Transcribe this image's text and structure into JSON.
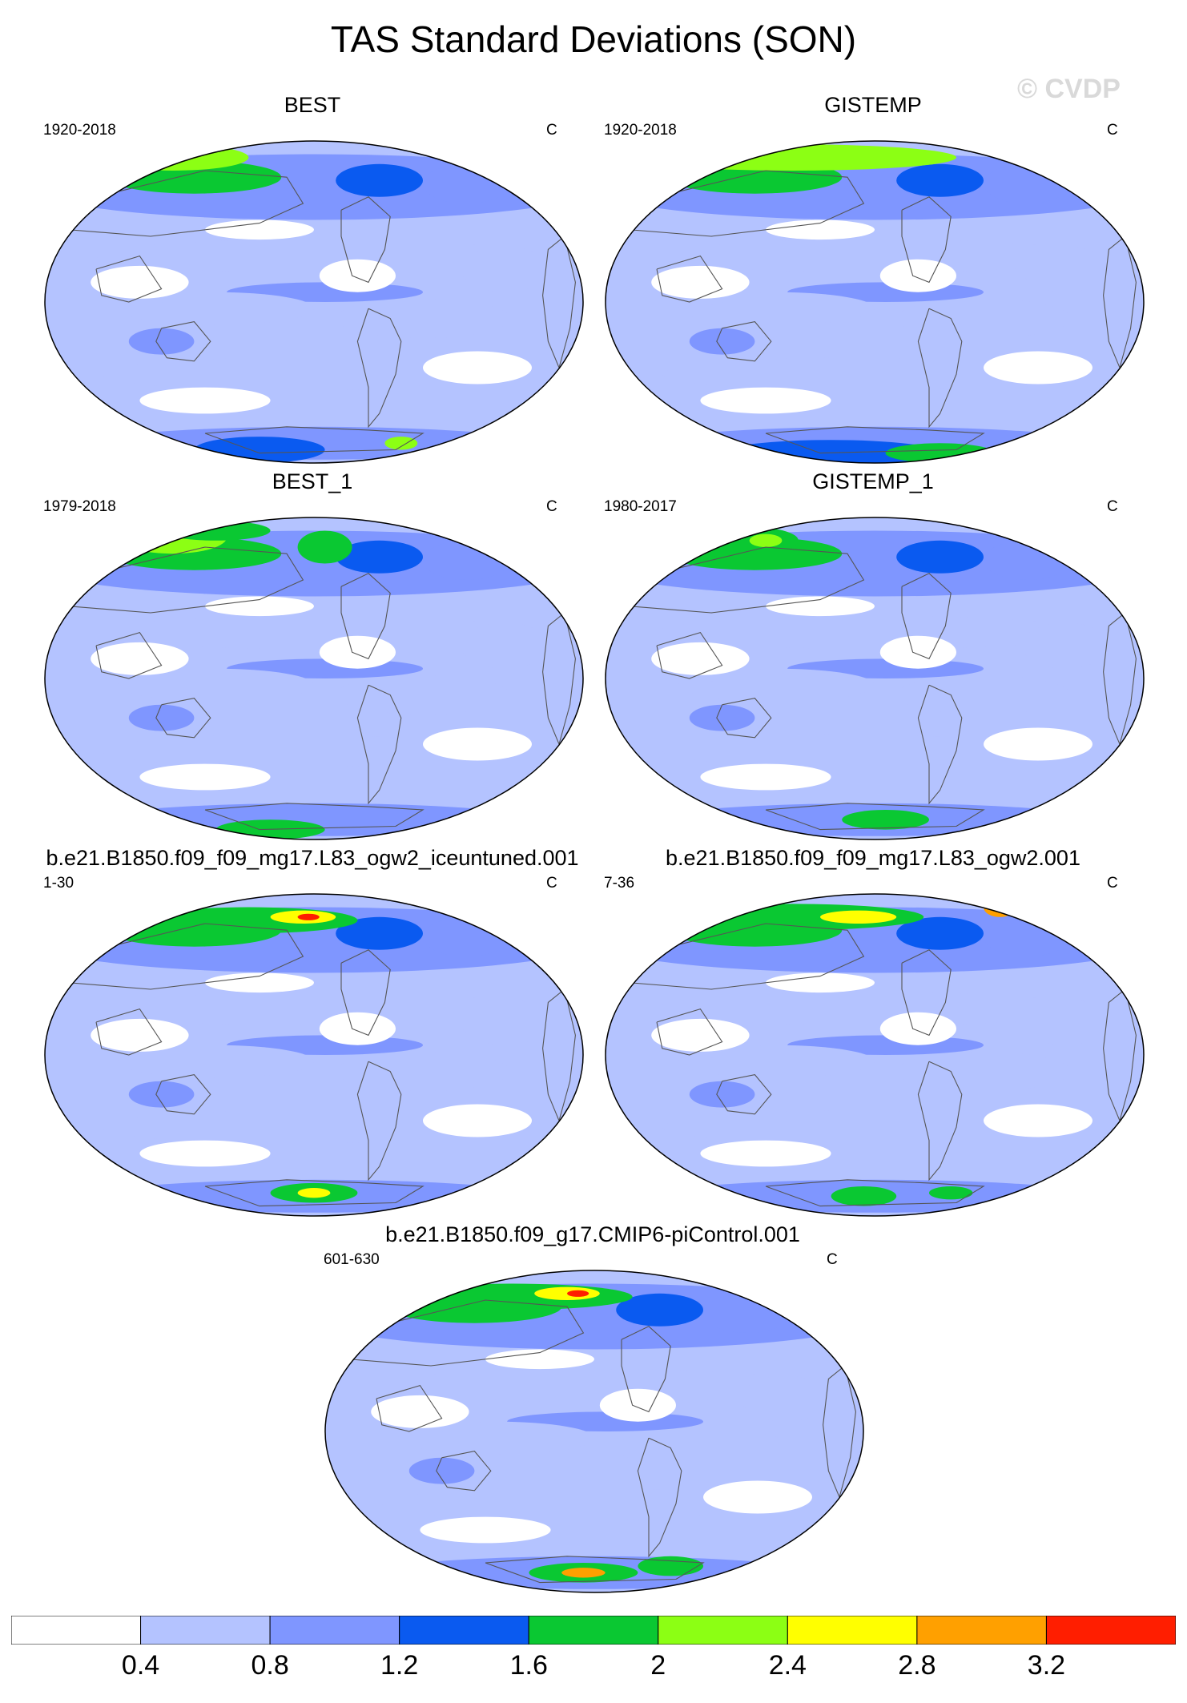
{
  "title": "TAS Standard Deviations (SON)",
  "watermark": "© CVDP",
  "panels": [
    {
      "title": "BEST",
      "period": "1920-2018",
      "units": "C",
      "variant": 0
    },
    {
      "title": "GISTEMP",
      "period": "1920-2018",
      "units": "C",
      "variant": 1
    },
    {
      "title": "BEST_1",
      "period": "1979-2018",
      "units": "C",
      "variant": 2
    },
    {
      "title": "GISTEMP_1",
      "period": "1980-2017",
      "units": "C",
      "variant": 3
    },
    {
      "title": "b.e21.B1850.f09_f09_mg17.L83_ogw2_iceuntuned.001",
      "period": "1-30",
      "units": "C",
      "variant": 4
    },
    {
      "title": "b.e21.B1850.f09_f09_mg17.L83_ogw2.001",
      "period": "7-36",
      "units": "C",
      "variant": 5
    },
    {
      "title": "b.e21.B1850.f09_g17.CMIP6-piControl.001",
      "period": "601-630",
      "units": "C",
      "variant": 6
    }
  ],
  "colorbar": {
    "labels": [
      "0.4",
      "0.8",
      "1.2",
      "1.6",
      "2",
      "2.4",
      "2.8",
      "3.2"
    ],
    "colors": [
      "#ffffff",
      "#b4c3ff",
      "#7f96ff",
      "#0a5af0",
      "#0ac832",
      "#8cff14",
      "#ffff00",
      "#ffa000",
      "#ff1e00"
    ]
  }
}
